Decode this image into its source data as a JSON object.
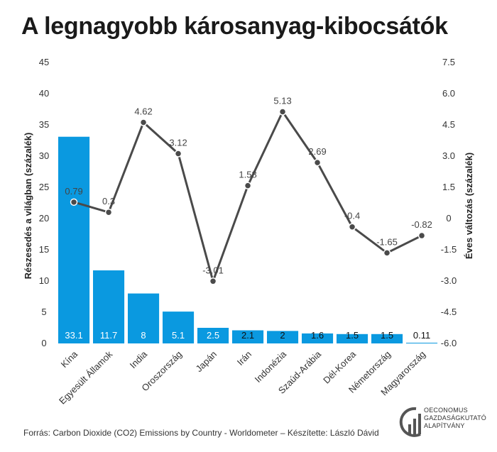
{
  "title": "A legnagyobb károsanyag-kibocsátók",
  "source": "Forrás: Carbon Dioxide (CO2) Emissions by Country - Worldometer – Készítette: László Dávid",
  "logo": {
    "icon": "oeconomus-logo-icon",
    "lines": [
      "OECONOMUS",
      "GAZDASÁGKUTATÓ",
      "ALAPÍTVÁNY"
    ]
  },
  "colors": {
    "bar": "#0a99e0",
    "line": "#4a4a4a",
    "text": "#333333"
  },
  "chart_data": {
    "type": "bar",
    "categories": [
      "Kína",
      "Egyesült Államok",
      "India",
      "Oroszország",
      "Japán",
      "Irán",
      "Indonézia",
      "Szaúd-Arábia",
      "Dél-Korea",
      "Németország",
      "Magyarország"
    ],
    "series": [
      {
        "type": "bar",
        "axis": "left",
        "values": [
          33.1,
          11.7,
          8,
          5.1,
          2.5,
          2.1,
          2,
          1.6,
          1.5,
          1.5,
          0.11
        ],
        "labels": [
          "33.1",
          "11.7",
          "8",
          "5.1",
          "2.5",
          "2.1",
          "2",
          "1.6",
          "1.5",
          "1.5",
          "0.11"
        ]
      },
      {
        "type": "line",
        "axis": "right",
        "values": [
          0.79,
          0.3,
          4.62,
          3.12,
          -3.01,
          1.58,
          5.13,
          2.69,
          -0.4,
          -1.65,
          -0.82
        ],
        "labels": [
          "0.79",
          "0.3",
          "4.62",
          "3.12",
          "-3.01",
          "1.58",
          "5.13",
          "2.69",
          "-0.4",
          "-1.65",
          "-0.82"
        ]
      }
    ],
    "ylabel": "Részesedés a világban (százalék)",
    "y2label": "Éves változás (százalék)",
    "ylim": [
      0,
      45
    ],
    "y2lim": [
      -6,
      7.5
    ],
    "yticks": [
      "0",
      "5",
      "10",
      "15",
      "20",
      "25",
      "30",
      "35",
      "40",
      "45"
    ],
    "y2ticks": [
      "-6.0",
      "-4.5",
      "-3.0",
      "-1.5",
      "0",
      "1.5",
      "3.0",
      "4.5",
      "6.0",
      "7.5"
    ],
    "grid": false,
    "legend": "none"
  }
}
